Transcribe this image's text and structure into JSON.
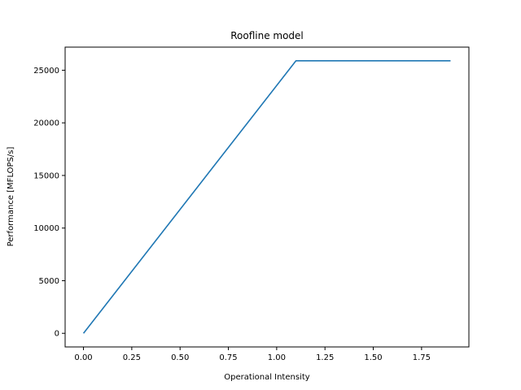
{
  "chart_data": {
    "type": "line",
    "title": "Roofline model",
    "xlabel": "Operational Intensity",
    "ylabel": "Performance [MFLOPS/s]",
    "xlim": [
      -0.095,
      1.995
    ],
    "ylim": [
      -1295,
      27195
    ],
    "x_ticks": [
      0.0,
      0.25,
      0.5,
      0.75,
      1.0,
      1.25,
      1.5,
      1.75
    ],
    "x_tick_labels": [
      "0.00",
      "0.25",
      "0.50",
      "0.75",
      "1.00",
      "1.25",
      "1.50",
      "1.75"
    ],
    "y_ticks": [
      0,
      5000,
      10000,
      15000,
      20000,
      25000
    ],
    "y_tick_labels": [
      "0",
      "5000",
      "10000",
      "15000",
      "20000",
      "25000"
    ],
    "grid": false,
    "series": [
      {
        "color": "#1f77b4",
        "x": [
          0.0,
          1.1,
          1.9
        ],
        "y": [
          0,
          25900,
          25900
        ]
      }
    ]
  }
}
